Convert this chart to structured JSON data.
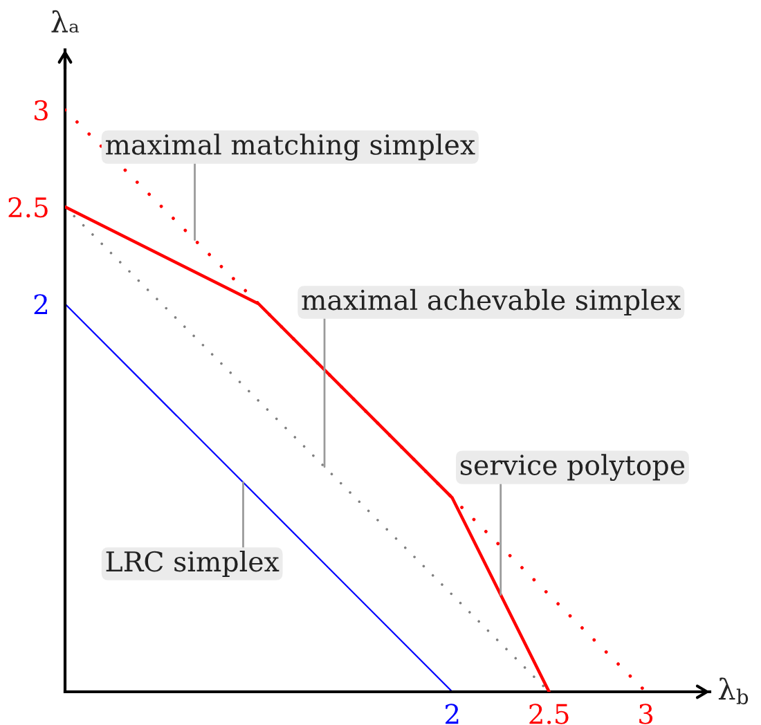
{
  "chart_data": {
    "type": "line",
    "xlabel": "λ$_{b}$",
    "ylabel": "λₐ",
    "xlim": [
      0,
      3.33
    ],
    "ylim": [
      0,
      3.31
    ],
    "xticks": [
      2,
      2.5,
      3
    ],
    "yticks": [
      2,
      2.5,
      3
    ],
    "series": [
      {
        "color": "#0000ff",
        "x": [
          0,
          2
        ],
        "values": [
          2,
          0
        ]
      },
      {
        "color": "#808080",
        "x": [
          0,
          2.5
        ],
        "values": [
          2.5,
          0
        ],
        "line_style": "dotted"
      },
      {
        "color": "#ff0000",
        "x": [
          0,
          3
        ],
        "values": [
          3,
          0
        ],
        "line_style": "dotted"
      },
      {
        "color": "#ff0000",
        "x": [
          0,
          1,
          2,
          2.5
        ],
        "values": [
          2.5,
          2,
          1,
          0
        ]
      }
    ],
    "annotations": [
      {
        "text": "maximal matching simplex",
        "x": 0.67,
        "y": 2.33
      },
      {
        "text": "maximal achevable simplex",
        "x": 1.34,
        "y": 1.16
      },
      {
        "text": "service polytope",
        "x": 2.25,
        "y": 0.5
      },
      {
        "text": "LRC simplex",
        "x": 0.92,
        "y": 1.08
      }
    ]
  }
}
